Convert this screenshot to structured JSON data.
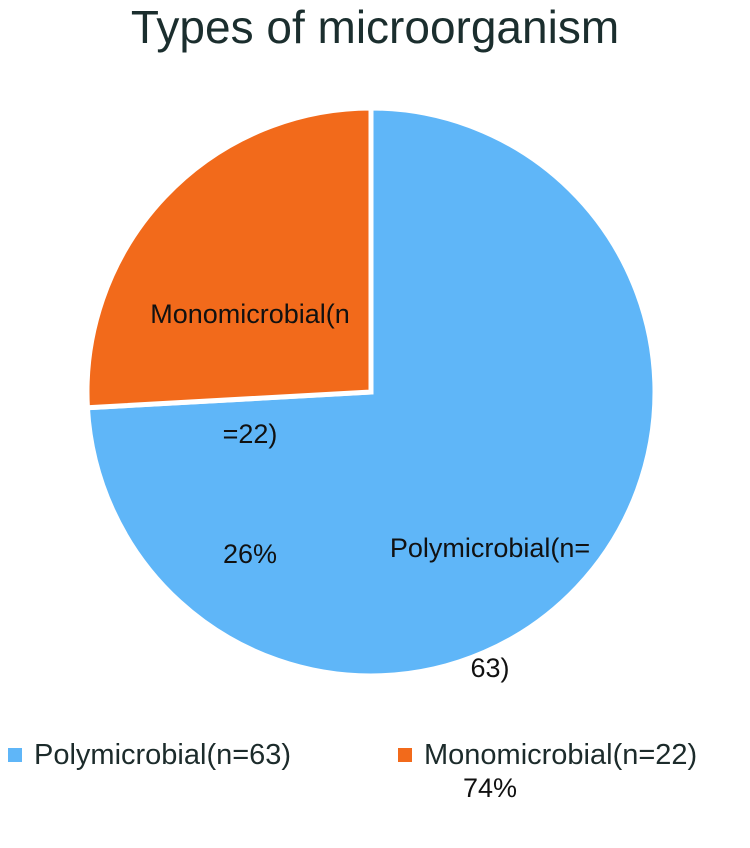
{
  "chart_data": {
    "type": "pie",
    "title": "Types of microorganism",
    "slices": [
      {
        "name": "Polymicrobial(n=63)",
        "value": 63,
        "percent": "74%",
        "label_line1": "Polymicrobial(n=",
        "label_line2": "63)",
        "color": "#5fb6f8"
      },
      {
        "name": "Monomicrobial(n=22)",
        "value": 22,
        "percent": "26%",
        "label_line1": "Monomicrobial(n",
        "label_line2": "=22)",
        "color": "#f26a1b"
      }
    ],
    "legend_position": "bottom"
  }
}
